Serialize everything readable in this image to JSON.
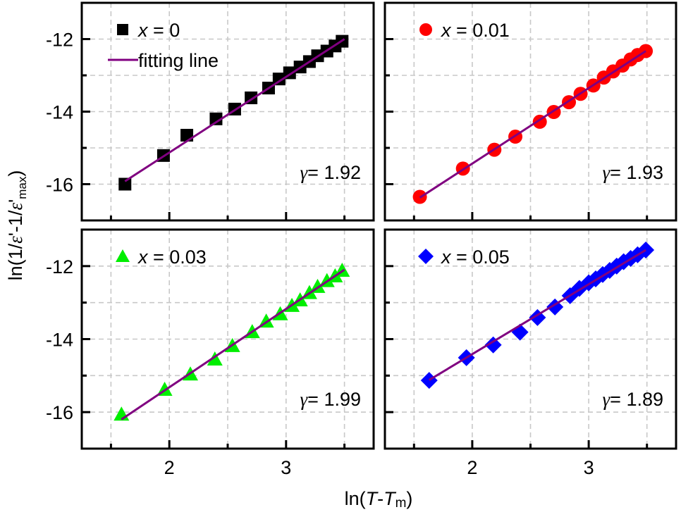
{
  "chart_data": {
    "type": "scatter",
    "layout": "2x2 panels, shared axes",
    "xlabel": {
      "prefix": "ln(",
      "var1": "T",
      "dash": "-",
      "var2": "T",
      "sub": "m",
      "suffix": ")"
    },
    "ylabel": {
      "prefix": "ln(1/",
      "eps1": "ε",
      "mid": "'-1/",
      "eps2": "ε",
      "prime": "'",
      "sub": "max",
      "suffix": ")"
    },
    "xlim": [
      1.25,
      3.75
    ],
    "ylim": [
      -17,
      -11
    ],
    "x_ticks_major": [
      2,
      3
    ],
    "x_tick_labels": [
      "2",
      "3"
    ],
    "x_ticks_minor": [
      1.5,
      2.5,
      3.5
    ],
    "y_ticks_major": [
      -12,
      -14,
      -16
    ],
    "y_tick_labels": [
      "-12",
      "-14",
      "-16"
    ],
    "y_ticks_minor": [
      -13,
      -15
    ],
    "grid": true,
    "fit_legend_label": "fitting line",
    "fit_color": "#800080",
    "panels": [
      {
        "name": "x0",
        "legend_var": "x",
        "legend_value": " = 0",
        "marker": "square",
        "color": "#000000",
        "gamma_symbol": "γ",
        "gamma_text": "= 1.92",
        "x": [
          1.62,
          1.95,
          2.15,
          2.4,
          2.56,
          2.7,
          2.85,
          2.94,
          3.03,
          3.12,
          3.2,
          3.27,
          3.35,
          3.42,
          3.48
        ],
        "y": [
          -16.0,
          -15.21,
          -14.65,
          -14.2,
          -13.93,
          -13.62,
          -13.35,
          -13.1,
          -12.93,
          -12.77,
          -12.62,
          -12.46,
          -12.33,
          -12.19,
          -12.06
        ],
        "fit": {
          "x": [
            1.62,
            3.5
          ],
          "y": [
            -15.92,
            -12.0
          ]
        }
      },
      {
        "name": "x001",
        "legend_var": "x",
        "legend_value": " = 0.01",
        "marker": "circle",
        "color": "#ff0000",
        "gamma_symbol": "γ",
        "gamma_text": "= 1.93",
        "x": [
          1.55,
          1.92,
          2.19,
          2.37,
          2.58,
          2.7,
          2.83,
          2.93,
          3.04,
          3.13,
          3.21,
          3.29,
          3.36,
          3.42,
          3.49
        ],
        "y": [
          -16.35,
          -15.57,
          -15.05,
          -14.69,
          -14.28,
          -14.01,
          -13.74,
          -13.51,
          -13.28,
          -13.06,
          -12.89,
          -12.73,
          -12.56,
          -12.44,
          -12.33
        ],
        "fit": {
          "x": [
            1.55,
            3.49
          ],
          "y": [
            -16.37,
            -12.33
          ]
        }
      },
      {
        "name": "x003",
        "legend_var": "x",
        "legend_value": " = 0.03",
        "marker": "triangle",
        "color": "#00ee00",
        "gamma_symbol": "γ",
        "gamma_text": "= 1.99",
        "x": [
          1.59,
          1.96,
          2.18,
          2.39,
          2.54,
          2.71,
          2.83,
          2.95,
          3.05,
          3.12,
          3.2,
          3.27,
          3.35,
          3.42,
          3.48
        ],
        "y": [
          -16.06,
          -15.38,
          -14.96,
          -14.55,
          -14.18,
          -13.8,
          -13.51,
          -13.31,
          -13.08,
          -12.93,
          -12.73,
          -12.56,
          -12.4,
          -12.27,
          -12.12
        ],
        "fit": {
          "x": [
            1.59,
            3.5
          ],
          "y": [
            -16.2,
            -12.1
          ]
        }
      },
      {
        "name": "x005",
        "legend_var": "x",
        "legend_value": " = 0.05",
        "marker": "diamond",
        "color": "#0000ff",
        "gamma_symbol": "γ",
        "gamma_text": "= 1.89",
        "x": [
          1.63,
          1.95,
          2.18,
          2.41,
          2.56,
          2.71,
          2.84,
          2.92,
          3.0,
          3.06,
          3.12,
          3.18,
          3.24,
          3.3,
          3.36,
          3.42,
          3.49
        ],
        "y": [
          -15.13,
          -14.51,
          -14.16,
          -13.81,
          -13.41,
          -13.12,
          -12.81,
          -12.61,
          -12.46,
          -12.35,
          -12.23,
          -12.12,
          -12.0,
          -11.88,
          -11.79,
          -11.69,
          -11.56
        ],
        "fit": {
          "x": [
            1.63,
            3.49
          ],
          "y": [
            -15.12,
            -11.56
          ]
        }
      }
    ]
  }
}
